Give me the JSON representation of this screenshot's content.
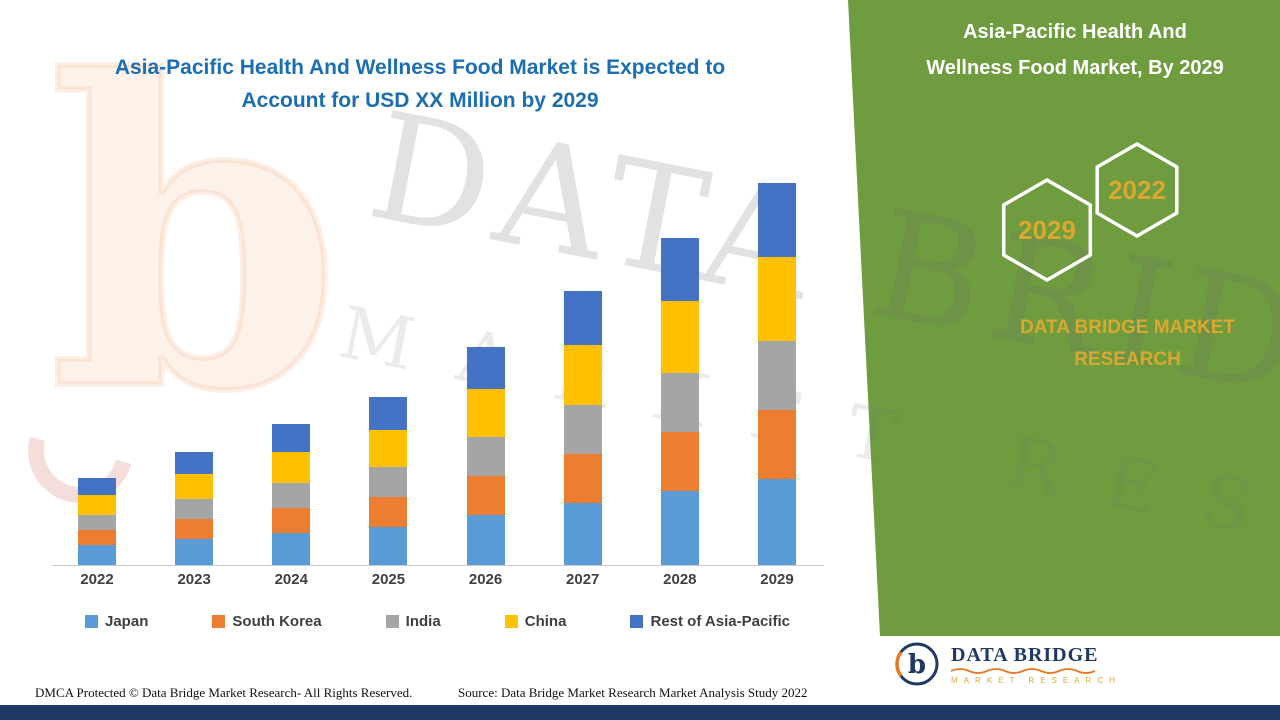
{
  "page": {
    "background": "#FFFFFF",
    "green_panel_color": "#6E9C3E",
    "footer_bar_color": "#1F3864",
    "title_color": "#1C6EB4",
    "gold_accent": "#D9A92F"
  },
  "main_title": {
    "line1": "Asia-Pacific Health And Wellness Food Market is Expected to",
    "line2": "Account for USD XX Million by 2029"
  },
  "chart_data": {
    "type": "bar",
    "stacked": true,
    "title": "Asia-Pacific Health And Wellness Food Market is Expected to Account for USD XX Million by 2029",
    "categories": [
      "2022",
      "2023",
      "2024",
      "2025",
      "2026",
      "2027",
      "2028",
      "2029"
    ],
    "series": [
      {
        "name": "Japan",
        "color": "#5B9BD5",
        "values": [
          20,
          26,
          32,
          38,
          50,
          62,
          74,
          86
        ]
      },
      {
        "name": "South Korea",
        "color": "#ED7D31",
        "values": [
          15,
          20,
          25,
          30,
          39,
          49,
          59,
          69
        ]
      },
      {
        "name": "India",
        "color": "#A5A5A5",
        "values": [
          15,
          20,
          25,
          30,
          39,
          49,
          59,
          69
        ]
      },
      {
        "name": "China",
        "color": "#FFC000",
        "values": [
          20,
          25,
          31,
          37,
          48,
          60,
          72,
          84
        ]
      },
      {
        "name": "Rest of Asia-Pacific",
        "color": "#4472C4",
        "values": [
          17,
          22,
          28,
          33,
          42,
          54,
          63,
          74
        ]
      }
    ],
    "xlabel": "",
    "ylabel": "",
    "y_axis_labels_visible": false,
    "grid": false,
    "legend_position": "bottom",
    "note": "Y-axis is unlabeled in the figure (USD XX Million); series values are relative estimates read from bar heights."
  },
  "right_panel": {
    "title_line1": "Asia-Pacific Health And",
    "title_line2": "Wellness Food Market, By 2029",
    "hexagons": [
      {
        "year": "2029"
      },
      {
        "year": "2022"
      }
    ],
    "brand_line1": "DATA BRIDGE MARKET",
    "brand_line2": "RESEARCH"
  },
  "watermark": {
    "letter": "b",
    "line1": "DATA BRIDGE",
    "line2": "MARKET RESEARCH"
  },
  "logo": {
    "letter": "b",
    "name": "DATA BRIDGE",
    "subtitle": "MARKET RESEARCH"
  },
  "footer": {
    "dmca": "DMCA Protected © Data Bridge Market Research- All Rights Reserved.",
    "source": "Source: Data Bridge Market Research Market Analysis Study 2022"
  }
}
